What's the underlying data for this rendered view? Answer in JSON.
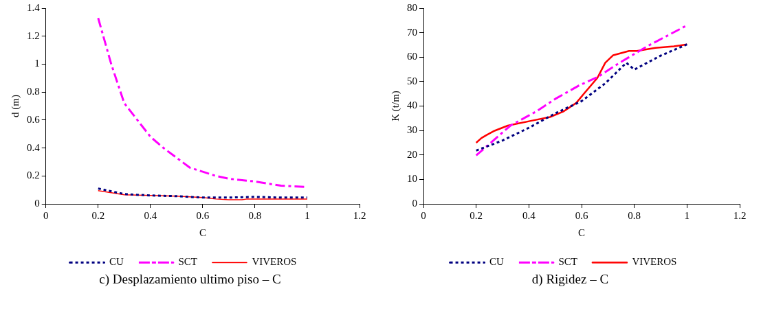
{
  "chart_data": [
    {
      "type": "line",
      "title": "c) Desplazamiento ultimo piso – C",
      "xlabel": "C",
      "ylabel": "d (m)",
      "xlim": [
        0,
        1.2
      ],
      "xticks": [
        0,
        0.2,
        0.4,
        0.6,
        0.8,
        1,
        1.2
      ],
      "ylim": [
        0,
        1.4
      ],
      "yticks": [
        0,
        0.2,
        0.4,
        0.6,
        0.8,
        1,
        1.2,
        1.4
      ],
      "grid": false,
      "legend": "bottom",
      "marker": "none",
      "series": [
        {
          "name": "CU",
          "color": "#000080",
          "line_style": "dotted",
          "x": [
            0.2,
            0.3,
            0.4,
            0.5,
            0.6,
            0.7,
            0.8,
            0.9,
            1.0
          ],
          "values": [
            0.11,
            0.07,
            0.06,
            0.055,
            0.045,
            0.045,
            0.05,
            0.045,
            0.045
          ]
        },
        {
          "name": "SCT",
          "color": "#ff00ff",
          "line_style": "dashdot",
          "x": [
            0.2,
            0.25,
            0.3,
            0.35,
            0.4,
            0.45,
            0.5,
            0.55,
            0.6,
            0.65,
            0.7,
            0.8,
            0.9,
            1.0
          ],
          "values": [
            1.33,
            1.0,
            0.72,
            0.6,
            0.48,
            0.4,
            0.33,
            0.26,
            0.23,
            0.2,
            0.18,
            0.16,
            0.13,
            0.12
          ]
        },
        {
          "name": "VIVEROS",
          "color": "#ff0000",
          "line_style": "solid",
          "x": [
            0.2,
            0.3,
            0.4,
            0.5,
            0.6,
            0.65,
            0.7,
            0.75,
            0.77,
            1.0
          ],
          "values": [
            0.095,
            0.065,
            0.06,
            0.055,
            0.045,
            0.035,
            0.03,
            0.03,
            0.035,
            0.035
          ]
        }
      ]
    },
    {
      "type": "line",
      "title": "d) Rigidez – C",
      "xlabel": "C",
      "ylabel": "K (t/m)",
      "xlim": [
        0,
        1.2
      ],
      "xticks": [
        0,
        0.2,
        0.4,
        0.6,
        0.8,
        1,
        1.2
      ],
      "ylim": [
        0,
        80
      ],
      "yticks": [
        0,
        10,
        20,
        30,
        40,
        50,
        60,
        70,
        80
      ],
      "grid": false,
      "legend": "bottom",
      "marker": "none",
      "series": [
        {
          "name": "CU",
          "color": "#000080",
          "line_style": "dotted",
          "x": [
            0.2,
            0.3,
            0.4,
            0.5,
            0.6,
            0.69,
            0.77,
            0.8,
            0.9,
            1.0
          ],
          "values": [
            21.8,
            25.9,
            31.1,
            37,
            42,
            49.3,
            57.7,
            54.9,
            60.6,
            65.2
          ]
        },
        {
          "name": "SCT",
          "color": "#ff00ff",
          "line_style": "dashdot",
          "x": [
            0.2,
            0.33,
            0.43,
            0.5,
            0.59,
            0.66,
            0.74,
            0.85,
            1.0
          ],
          "values": [
            19.8,
            32,
            37.9,
            42.9,
            48.4,
            51.8,
            57.4,
            64.5,
            73
          ]
        },
        {
          "name": "VIVEROS",
          "color": "#ff0000",
          "line_style": "solid",
          "x": [
            0.2,
            0.22,
            0.24,
            0.27,
            0.32,
            0.41,
            0.48,
            0.53,
            0.58,
            0.61,
            0.66,
            0.69,
            0.72,
            0.78,
            0.81,
            0.88,
            0.95,
            1.0
          ],
          "values": [
            25,
            26.9,
            28.2,
            29.9,
            32,
            34,
            35.5,
            37.7,
            41.3,
            45.2,
            51.5,
            57.7,
            60.8,
            62.5,
            62.5,
            63.8,
            64.4,
            65.2
          ]
        }
      ]
    }
  ]
}
